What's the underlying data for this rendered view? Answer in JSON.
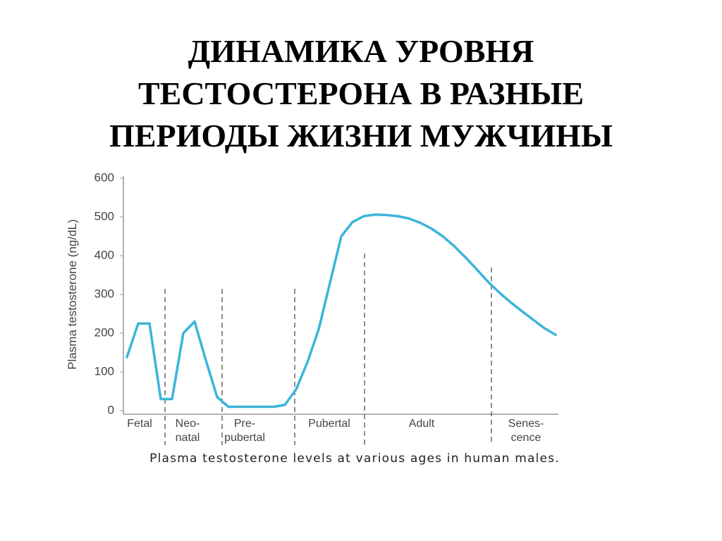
{
  "chart_data": {
    "type": "line",
    "title": [
      "ДИНАМИКА УРОВНЯ",
      "ТЕСТОСТЕРОНА В РАЗНЫЕ",
      "ПЕРИОДЫ ЖИЗНИ МУЖЧИНЫ"
    ],
    "y_label": "Plasma testosterone (ng/dL)",
    "caption": "Plasma testosterone levels at various ages in human males.",
    "stages": [
      [
        "Fetal"
      ],
      [
        "Neo-",
        "natal"
      ],
      [
        "Pre-",
        "pubertal"
      ],
      [
        "Pubertal"
      ],
      [
        "Adult"
      ],
      [
        "Senes-",
        "cence"
      ]
    ],
    "categories": [
      null,
      null,
      null,
      null,
      null,
      null,
      null,
      null,
      null,
      null,
      null,
      null,
      null,
      null,
      null,
      null,
      null,
      null,
      null,
      null,
      null,
      null,
      null,
      null,
      null,
      null,
      null,
      null,
      null,
      null,
      null,
      null,
      null,
      null,
      null,
      null,
      null,
      null,
      null
    ],
    "series": [
      {
        "color": "#3bb5d9",
        "values": [
          138,
          225,
          225,
          30,
          30,
          200,
          230,
          130,
          35,
          10,
          10,
          10,
          10,
          10,
          15,
          55,
          125,
          210,
          330,
          450,
          487,
          502,
          506,
          505,
          502,
          496,
          485,
          470,
          450,
          425,
          396,
          365,
          333,
          305,
          280,
          257,
          235,
          213,
          196
        ]
      }
    ],
    "ylim": [
      0,
      600
    ],
    "yticks": [
      0,
      100,
      200,
      300,
      400,
      500,
      600
    ]
  }
}
